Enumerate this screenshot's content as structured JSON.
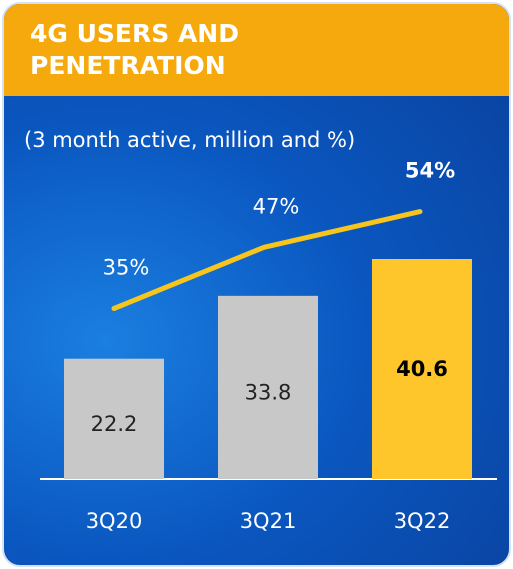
{
  "chart_data": {
    "type": "bar_line",
    "title": "4G USERS AND PENETRATION",
    "subtitle": "(3 month active, million and %)",
    "categories": [
      "3Q20",
      "3Q21",
      "3Q22"
    ],
    "series": [
      {
        "type": "bar",
        "colors": [
          "#c8c8c8",
          "#c8c8c8",
          "#fec62a"
        ],
        "values": [
          22.2,
          33.8,
          40.6
        ]
      },
      {
        "type": "line",
        "axis": "y2",
        "color": "#f7c51c",
        "values": [
          35,
          47,
          54
        ],
        "value_labels": [
          "35%",
          "47%",
          "54%"
        ]
      }
    ]
  }
}
